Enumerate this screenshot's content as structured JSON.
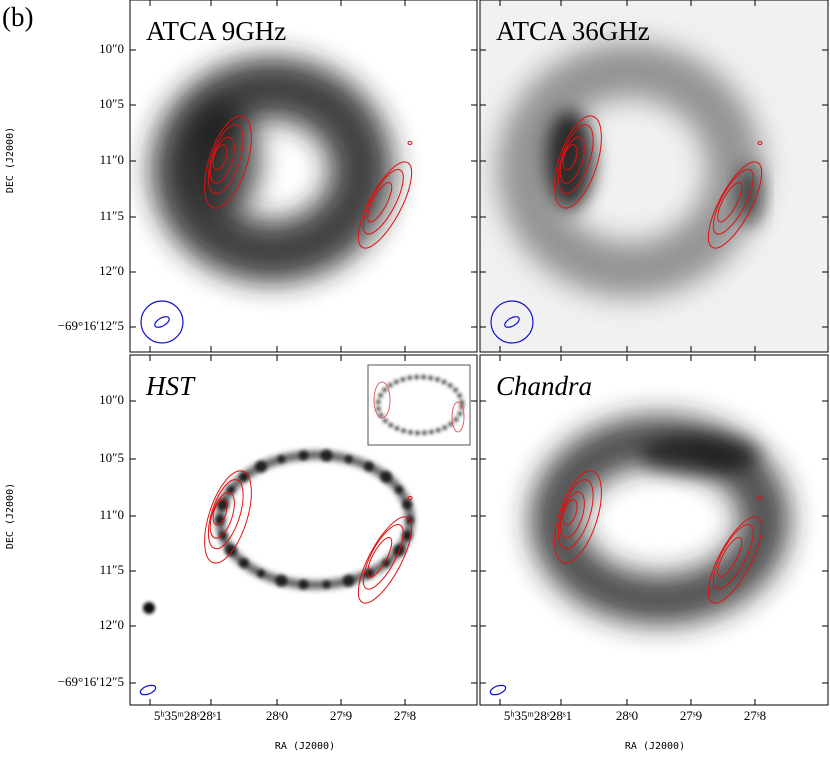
{
  "figure_label": "(b)",
  "panels": [
    {
      "title": "ATCA 9GHz"
    },
    {
      "title": "ATCA 36GHz"
    },
    {
      "title": "HST"
    },
    {
      "title": "Chandra"
    }
  ],
  "y_axis_label": "DEC (J2000)",
  "x_axis_label": "RA (J2000)",
  "y_tick_labels": [
    "10″0",
    "10″5",
    "11″0",
    "11″5",
    "12″0",
    "−69°16′12″5"
  ],
  "x_tick_labels": [
    "5ʰ35ᵐ28ˢ2",
    "28ˢ1",
    "28ˢ0",
    "27ˢ9",
    "27ˢ8"
  ]
}
